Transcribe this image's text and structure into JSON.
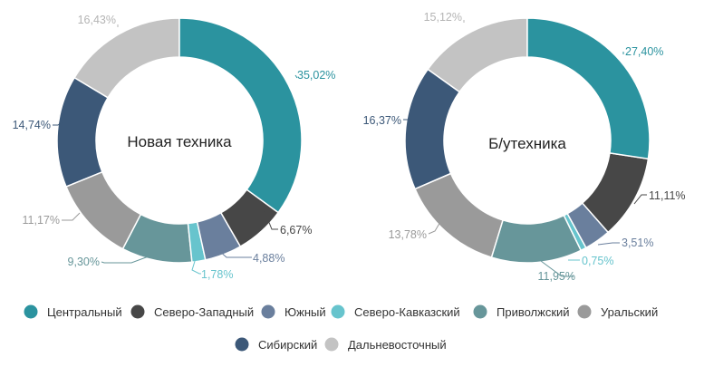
{
  "chart_data": [
    {
      "type": "donut",
      "center_label": "Новая техника",
      "categories": [
        "Центральный",
        "Северо-Западный",
        "Южный",
        "Северо-Кавказский",
        "Приволжский",
        "Уральский",
        "Сибирский",
        "Дальневосточный"
      ],
      "values": [
        35.02,
        6.67,
        4.88,
        1.78,
        9.3,
        11.17,
        14.74,
        16.43
      ],
      "value_labels": [
        "35,02%",
        "6,67%",
        "4,88%",
        "1,78%",
        "9,30%",
        "11,17%",
        "14,74%",
        "16,43%"
      ]
    },
    {
      "type": "donut",
      "center_label": "Б/утехника",
      "categories": [
        "Центральный",
        "Северо-Западный",
        "Южный",
        "Северо-Кавказский",
        "Приволжский",
        "Уральский",
        "Сибирский",
        "Дальневосточный"
      ],
      "values": [
        27.4,
        11.11,
        3.51,
        0.75,
        11.95,
        13.78,
        16.37,
        15.12
      ],
      "value_labels": [
        "27,40%",
        "11,11%",
        "3,51%",
        "0,75%",
        "11,95%",
        "13,78%",
        "16,37%",
        "15,12%"
      ]
    }
  ],
  "legend": {
    "placement": "bottom",
    "items": [
      {
        "label": "Центральный",
        "color": "#2b939f"
      },
      {
        "label": "Северо-Западный",
        "color": "#474747"
      },
      {
        "label": "Южный",
        "color": "#6a7f9d"
      },
      {
        "label": "Северо-Кавказский",
        "color": "#67c4cd"
      },
      {
        "label": "Приволжский",
        "color": "#67969a"
      },
      {
        "label": "Уральский",
        "color": "#9a9a9a"
      },
      {
        "label": "Сибирский",
        "color": "#3c5878"
      },
      {
        "label": "Дальневосточный",
        "color": "#c3c3c3"
      }
    ]
  },
  "label_colors": [
    "#2b939f",
    "#474747",
    "#6a7f9d",
    "#67c4cd",
    "#67969a",
    "#9a9a9a",
    "#3c5878",
    "#b4b4b4"
  ]
}
